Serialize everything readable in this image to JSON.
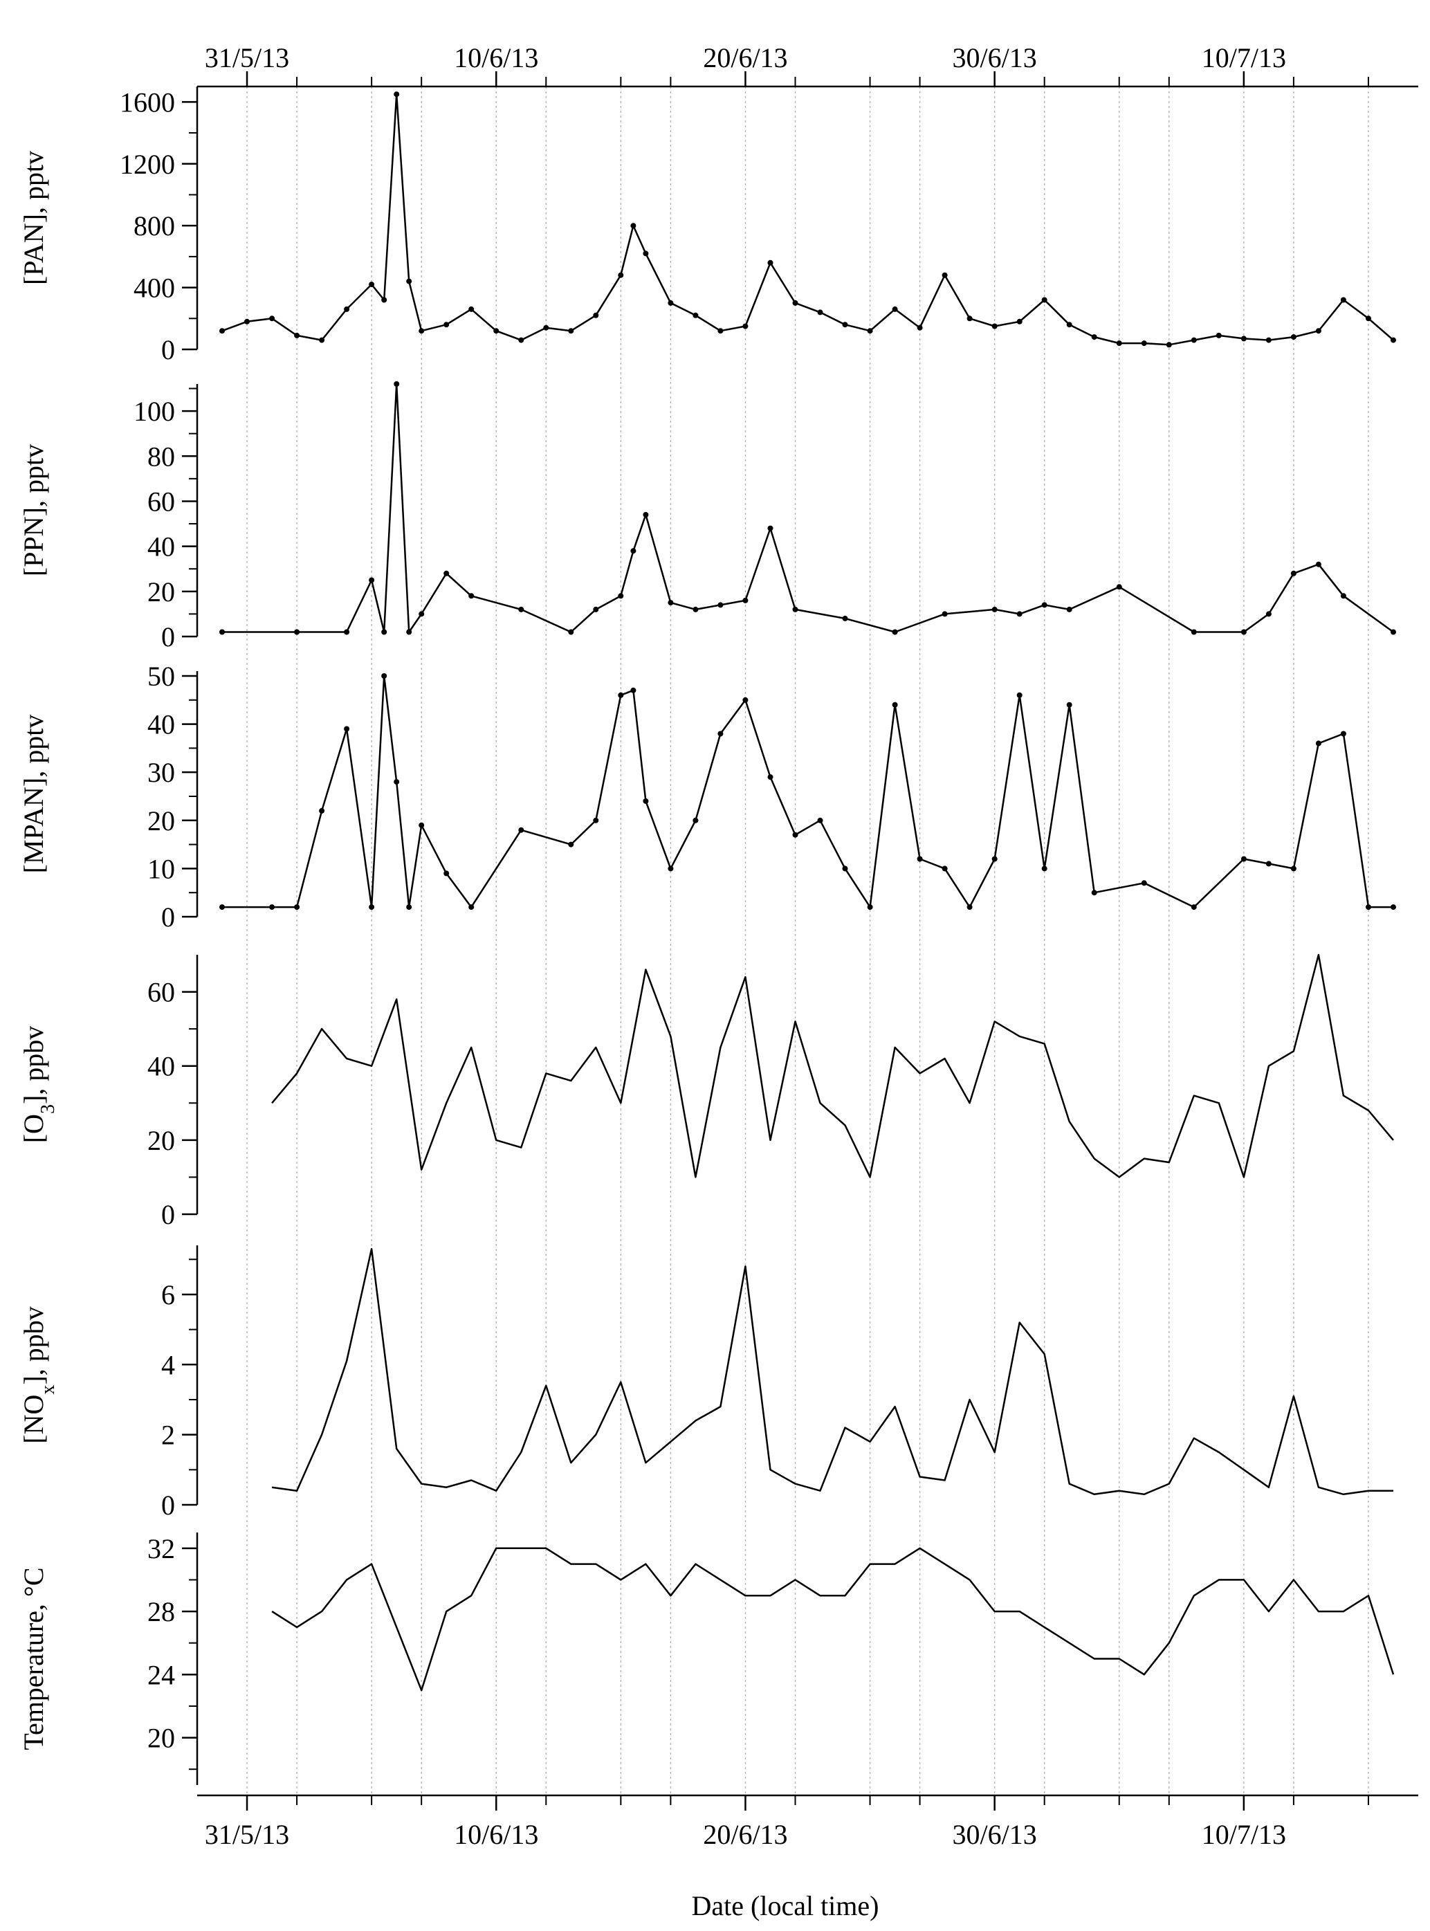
{
  "figure": {
    "x_axis": {
      "title": "Date (local time)",
      "start": "2013-05-29T00:00",
      "end": "2013-07-17T00:00",
      "tick_labels": [
        "31/5/13",
        "10/6/13",
        "20/6/13",
        "30/6/13",
        "10/7/13"
      ],
      "tick_dates": [
        "2013-05-31",
        "2013-06-10",
        "2013-06-20",
        "2013-06-30",
        "2013-07-10"
      ],
      "minor_tick_dates": [
        "2013-06-02",
        "2013-06-05",
        "2013-06-07",
        "2013-06-12",
        "2013-06-15",
        "2013-06-17",
        "2013-06-22",
        "2013-06-25",
        "2013-06-27",
        "2013-07-02",
        "2013-07-05",
        "2013-07-07",
        "2013-07-12",
        "2013-07-15"
      ]
    },
    "colors": {
      "line": "#000000",
      "grid": "#b8b8b8",
      "background": "#ffffff"
    }
  },
  "chart_data": [
    {
      "type": "line",
      "id": "pan",
      "ylabel": "[PAN], pptv",
      "ylim": [
        0,
        1700
      ],
      "yticks": [
        0,
        400,
        800,
        1200,
        1600
      ],
      "minor_yticks": [
        200,
        600,
        1000,
        1400
      ],
      "markers": true,
      "series": [
        {
          "x": [
            "2013-05-30",
            "2013-05-31",
            "2013-06-01",
            "2013-06-02",
            "2013-06-03",
            "2013-06-04",
            "2013-06-05",
            "2013-06-05T12",
            "2013-06-06",
            "2013-06-06T12",
            "2013-06-07",
            "2013-06-08",
            "2013-06-09",
            "2013-06-10",
            "2013-06-11",
            "2013-06-12",
            "2013-06-13",
            "2013-06-14",
            "2013-06-15",
            "2013-06-15T12",
            "2013-06-16",
            "2013-06-17",
            "2013-06-18",
            "2013-06-19",
            "2013-06-20",
            "2013-06-21",
            "2013-06-22",
            "2013-06-23",
            "2013-06-24",
            "2013-06-25",
            "2013-06-26",
            "2013-06-27",
            "2013-06-28",
            "2013-06-29",
            "2013-06-30",
            "2013-07-01",
            "2013-07-02",
            "2013-07-03",
            "2013-07-04",
            "2013-07-05",
            "2013-07-06",
            "2013-07-07",
            "2013-07-08",
            "2013-07-09",
            "2013-07-10",
            "2013-07-11",
            "2013-07-12",
            "2013-07-13",
            "2013-07-14",
            "2013-07-15",
            "2013-07-16"
          ],
          "y": [
            120,
            180,
            200,
            90,
            60,
            260,
            420,
            320,
            1650,
            440,
            120,
            160,
            260,
            120,
            60,
            140,
            120,
            220,
            480,
            800,
            620,
            300,
            220,
            120,
            150,
            560,
            300,
            240,
            160,
            120,
            260,
            140,
            480,
            200,
            150,
            180,
            320,
            160,
            80,
            40,
            40,
            30,
            60,
            90,
            70,
            60,
            80,
            120,
            320,
            200,
            60
          ]
        }
      ]
    },
    {
      "type": "line",
      "id": "ppn",
      "ylabel": "[PPN], pptv",
      "ylim": [
        0,
        112
      ],
      "yticks": [
        0,
        20,
        40,
        60,
        80,
        100
      ],
      "minor_yticks": [
        10,
        30,
        50,
        70,
        90,
        110
      ],
      "markers": true,
      "series": [
        {
          "x": [
            "2013-05-30",
            "2013-06-02",
            "2013-06-04",
            "2013-06-05",
            "2013-06-05T12",
            "2013-06-06",
            "2013-06-06T12",
            "2013-06-07",
            "2013-06-08",
            "2013-06-09",
            "2013-06-11",
            "2013-06-13",
            "2013-06-14",
            "2013-06-15",
            "2013-06-15T12",
            "2013-06-16",
            "2013-06-17",
            "2013-06-18",
            "2013-06-19",
            "2013-06-20",
            "2013-06-21",
            "2013-06-22",
            "2013-06-24",
            "2013-06-26",
            "2013-06-28",
            "2013-06-30",
            "2013-07-01",
            "2013-07-02",
            "2013-07-03",
            "2013-07-05",
            "2013-07-08",
            "2013-07-10",
            "2013-07-11",
            "2013-07-12",
            "2013-07-13",
            "2013-07-14",
            "2013-07-16"
          ],
          "y": [
            2,
            2,
            2,
            25,
            2,
            112,
            2,
            10,
            28,
            18,
            12,
            2,
            12,
            18,
            38,
            54,
            15,
            12,
            14,
            16,
            48,
            12,
            8,
            2,
            10,
            12,
            10,
            14,
            12,
            22,
            2,
            2,
            10,
            28,
            32,
            18,
            2
          ]
        }
      ]
    },
    {
      "type": "line",
      "id": "mpan",
      "ylabel": "[MPAN], pptv",
      "ylim": [
        0,
        51
      ],
      "yticks": [
        0,
        10,
        20,
        30,
        40,
        50
      ],
      "minor_yticks": [
        5,
        15,
        25,
        35,
        45
      ],
      "markers": true,
      "series": [
        {
          "x": [
            "2013-05-30",
            "2013-06-01",
            "2013-06-02",
            "2013-06-03",
            "2013-06-04",
            "2013-06-05",
            "2013-06-05T12",
            "2013-06-06",
            "2013-06-06T12",
            "2013-06-07",
            "2013-06-08",
            "2013-06-09",
            "2013-06-11",
            "2013-06-13",
            "2013-06-14",
            "2013-06-15",
            "2013-06-15T12",
            "2013-06-16",
            "2013-06-17",
            "2013-06-18",
            "2013-06-19",
            "2013-06-20",
            "2013-06-21",
            "2013-06-22",
            "2013-06-23",
            "2013-06-24",
            "2013-06-25",
            "2013-06-26",
            "2013-06-27",
            "2013-06-28",
            "2013-06-29",
            "2013-06-30",
            "2013-07-01",
            "2013-07-02",
            "2013-07-03",
            "2013-07-04",
            "2013-07-06",
            "2013-07-08",
            "2013-07-10",
            "2013-07-11",
            "2013-07-12",
            "2013-07-13",
            "2013-07-14",
            "2013-07-15",
            "2013-07-16"
          ],
          "y": [
            2,
            2,
            2,
            22,
            39,
            2,
            50,
            28,
            2,
            19,
            9,
            2,
            18,
            15,
            20,
            46,
            47,
            24,
            10,
            20,
            38,
            45,
            29,
            17,
            20,
            10,
            2,
            44,
            12,
            10,
            2,
            12,
            46,
            10,
            44,
            5,
            7,
            2,
            12,
            11,
            10,
            36,
            38,
            2,
            2
          ]
        }
      ]
    },
    {
      "type": "line",
      "id": "o3",
      "ylabel": "[O3], ppbv",
      "ylim": [
        0,
        70
      ],
      "yticks": [
        0,
        20,
        40,
        60
      ],
      "minor_yticks": [
        10,
        30,
        50
      ],
      "series": [
        {
          "x": [
            "2013-06-01",
            "2013-06-02",
            "2013-06-03",
            "2013-06-04",
            "2013-06-05",
            "2013-06-06",
            "2013-06-07",
            "2013-06-08",
            "2013-06-09",
            "2013-06-10",
            "2013-06-11",
            "2013-06-12",
            "2013-06-13",
            "2013-06-14",
            "2013-06-15",
            "2013-06-16",
            "2013-06-17",
            "2013-06-18",
            "2013-06-19",
            "2013-06-20",
            "2013-06-21",
            "2013-06-22",
            "2013-06-23",
            "2013-06-24",
            "2013-06-25",
            "2013-06-26",
            "2013-06-27",
            "2013-06-28",
            "2013-06-29",
            "2013-06-30",
            "2013-07-01",
            "2013-07-02",
            "2013-07-03",
            "2013-07-04",
            "2013-07-05",
            "2013-07-06",
            "2013-07-07",
            "2013-07-08",
            "2013-07-09",
            "2013-07-10",
            "2013-07-11",
            "2013-07-12",
            "2013-07-13",
            "2013-07-14",
            "2013-07-15",
            "2013-07-16"
          ],
          "y": [
            30,
            38,
            50,
            42,
            40,
            58,
            12,
            30,
            45,
            20,
            18,
            38,
            36,
            45,
            30,
            66,
            48,
            10,
            45,
            64,
            20,
            52,
            30,
            24,
            10,
            45,
            38,
            42,
            30,
            52,
            48,
            46,
            25,
            15,
            10,
            15,
            14,
            32,
            30,
            10,
            40,
            44,
            70,
            32,
            28,
            20
          ]
        }
      ]
    },
    {
      "type": "line",
      "id": "nox",
      "ylabel": "[NOx], ppbv",
      "ylim": [
        0,
        7.4
      ],
      "yticks": [
        0,
        2,
        4,
        6
      ],
      "minor_yticks": [
        1,
        3,
        5,
        7
      ],
      "series": [
        {
          "x": [
            "2013-06-01",
            "2013-06-02",
            "2013-06-03",
            "2013-06-04",
            "2013-06-05",
            "2013-06-06",
            "2013-06-07",
            "2013-06-08",
            "2013-06-09",
            "2013-06-10",
            "2013-06-11",
            "2013-06-12",
            "2013-06-13",
            "2013-06-14",
            "2013-06-15",
            "2013-06-16",
            "2013-06-17",
            "2013-06-18",
            "2013-06-19",
            "2013-06-20",
            "2013-06-21",
            "2013-06-22",
            "2013-06-23",
            "2013-06-24",
            "2013-06-25",
            "2013-06-26",
            "2013-06-27",
            "2013-06-28",
            "2013-06-29",
            "2013-06-30",
            "2013-07-01",
            "2013-07-02",
            "2013-07-03",
            "2013-07-04",
            "2013-07-05",
            "2013-07-06",
            "2013-07-07",
            "2013-07-08",
            "2013-07-09",
            "2013-07-10",
            "2013-07-11",
            "2013-07-12",
            "2013-07-13",
            "2013-07-14",
            "2013-07-15",
            "2013-07-16"
          ],
          "y": [
            0.5,
            0.4,
            2.0,
            4.1,
            7.3,
            1.6,
            0.6,
            0.5,
            0.7,
            0.4,
            1.5,
            3.4,
            1.2,
            2.0,
            3.5,
            1.2,
            1.8,
            2.4,
            2.8,
            6.8,
            1.0,
            0.6,
            0.4,
            2.2,
            1.8,
            2.8,
            0.8,
            0.7,
            3.0,
            1.5,
            5.2,
            4.3,
            0.6,
            0.3,
            0.4,
            0.3,
            0.6,
            1.9,
            1.5,
            1.0,
            0.5,
            3.1,
            0.5,
            0.3,
            0.4,
            0.4
          ]
        }
      ]
    },
    {
      "type": "line",
      "id": "temperature",
      "ylabel": "Temperature, °C",
      "ylim": [
        17,
        33
      ],
      "yticks": [
        20,
        24,
        28,
        32
      ],
      "minor_yticks": [
        18,
        22,
        26,
        30
      ],
      "series": [
        {
          "x": [
            "2013-06-01",
            "2013-06-02",
            "2013-06-03",
            "2013-06-04",
            "2013-06-05",
            "2013-06-06",
            "2013-06-07",
            "2013-06-08",
            "2013-06-09",
            "2013-06-10",
            "2013-06-11",
            "2013-06-12",
            "2013-06-13",
            "2013-06-14",
            "2013-06-15",
            "2013-06-16",
            "2013-06-17",
            "2013-06-18",
            "2013-06-19",
            "2013-06-20",
            "2013-06-21",
            "2013-06-22",
            "2013-06-23",
            "2013-06-24",
            "2013-06-25",
            "2013-06-26",
            "2013-06-27",
            "2013-06-28",
            "2013-06-29",
            "2013-06-30",
            "2013-07-01",
            "2013-07-02",
            "2013-07-03",
            "2013-07-04",
            "2013-07-05",
            "2013-07-06",
            "2013-07-07",
            "2013-07-08",
            "2013-07-09",
            "2013-07-10",
            "2013-07-11",
            "2013-07-12",
            "2013-07-13",
            "2013-07-14",
            "2013-07-15",
            "2013-07-16"
          ],
          "y": [
            28,
            27,
            28,
            30,
            31,
            27,
            23,
            28,
            29,
            32,
            32,
            32,
            31,
            31,
            30,
            31,
            29,
            31,
            30,
            29,
            29,
            30,
            29,
            29,
            31,
            31,
            32,
            31,
            30,
            28,
            28,
            27,
            26,
            25,
            25,
            24,
            26,
            29,
            30,
            30,
            28,
            30,
            28,
            28,
            29,
            24
          ]
        }
      ]
    }
  ]
}
